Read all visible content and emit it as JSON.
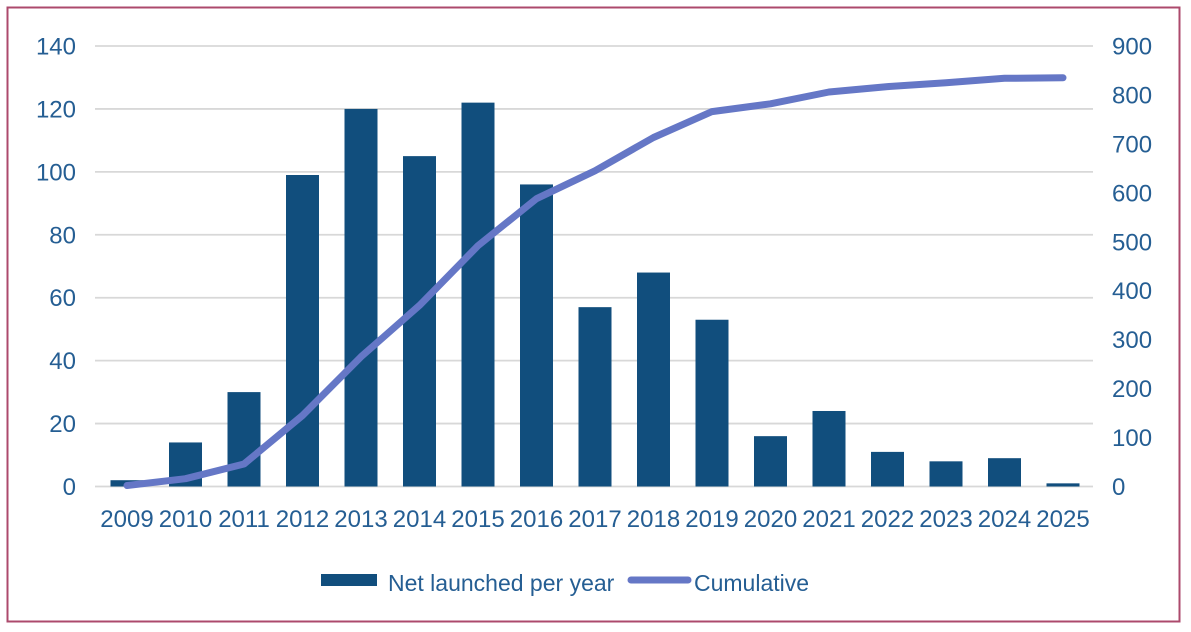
{
  "colors": {
    "background": "#FFFFFF",
    "border": "#AC4A6C",
    "gridline": "#D8D8D8",
    "axis_text": "#255E93",
    "bar_color": "#114E7D",
    "line_color": "#6577C6"
  },
  "legend": {
    "bar_label": "Net launched per year",
    "line_label": "Cumulative"
  },
  "chart_data": {
    "type": "bar+line combo",
    "title": "",
    "xlabel": "",
    "ylabel_left": "",
    "ylabel_right": "",
    "grid": true,
    "legend_position": "bottom",
    "categories": [
      "2009",
      "2010",
      "2011",
      "2012",
      "2013",
      "2014",
      "2015",
      "2016",
      "2017",
      "2018",
      "2019",
      "2020",
      "2021",
      "2022",
      "2023",
      "2024",
      "2025"
    ],
    "series": [
      {
        "name": "Net launched per year",
        "type": "bar",
        "axis": "left",
        "color": "#114E7D",
        "values": [
          2,
          14,
          30,
          99,
          120,
          105,
          122,
          96,
          57,
          68,
          53,
          16,
          24,
          11,
          8,
          9,
          1
        ]
      },
      {
        "name": "Cumulative",
        "type": "line",
        "axis": "right",
        "color": "#6577C6",
        "values": [
          2,
          16,
          46,
          145,
          265,
          370,
          492,
          588,
          645,
          713,
          766,
          782,
          806,
          817,
          825,
          834,
          835
        ]
      }
    ],
    "left_axis": {
      "min": 0,
      "max": 140,
      "step": 20,
      "ticks": [
        "0",
        "20",
        "40",
        "60",
        "80",
        "100",
        "120",
        "140"
      ]
    },
    "right_axis": {
      "min": 0,
      "max": 900,
      "step": 100,
      "ticks": [
        "0",
        "100",
        "200",
        "300",
        "400",
        "500",
        "600",
        "700",
        "800",
        "900"
      ]
    }
  }
}
